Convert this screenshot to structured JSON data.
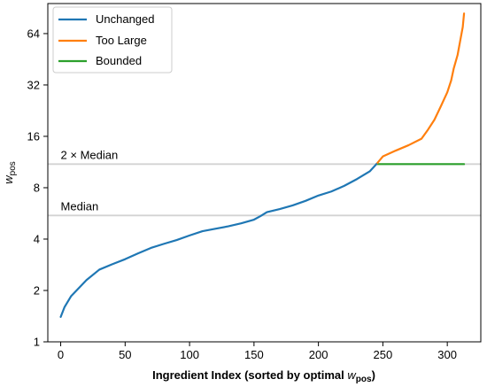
{
  "chart_data": {
    "type": "line",
    "xlabel": "Ingredient Index (sorted by optimal",
    "xlabel_math_base": "w",
    "xlabel_math_sub": "pos",
    "xlabel_close": ")",
    "ylabel_base": "w",
    "ylabel_sub": "pos",
    "y_scale": "log2",
    "xlim": [
      -10,
      326
    ],
    "ylim": [
      1,
      96
    ],
    "xticks": [
      0,
      50,
      100,
      150,
      200,
      250,
      300
    ],
    "xtick_labels": [
      "0",
      "50",
      "100",
      "150",
      "200",
      "250",
      "300"
    ],
    "yticks": [
      1,
      2,
      4,
      8,
      16,
      32,
      64
    ],
    "ytick_labels": [
      "1",
      "2",
      "4",
      "8",
      "16",
      "32",
      "64"
    ],
    "grid": false,
    "legend_position": "top-left",
    "hlines": [
      {
        "y": 11.0,
        "label": "2 × Median",
        "color": "#d3d3d3"
      },
      {
        "y": 5.5,
        "label": "Median",
        "color": "#d3d3d3"
      }
    ],
    "series": [
      {
        "name": "Unchanged",
        "color": "#1f77b4",
        "x": [
          0,
          3,
          8,
          15,
          20,
          30,
          40,
          50,
          60,
          70,
          80,
          90,
          100,
          110,
          120,
          130,
          140,
          150,
          155,
          160,
          170,
          180,
          190,
          200,
          210,
          220,
          230,
          240,
          245
        ],
        "y": [
          1.4,
          1.6,
          1.85,
          2.1,
          2.3,
          2.65,
          2.85,
          3.05,
          3.3,
          3.55,
          3.75,
          3.95,
          4.2,
          4.45,
          4.6,
          4.75,
          4.95,
          5.2,
          5.45,
          5.75,
          6.0,
          6.3,
          6.7,
          7.2,
          7.6,
          8.2,
          9.0,
          10.0,
          11.0
        ]
      },
      {
        "name": "Too Large",
        "color": "#ff7f0e",
        "x": [
          245,
          250,
          260,
          270,
          280,
          285,
          290,
          295,
          300,
          303,
          305,
          308,
          310,
          312,
          313
        ],
        "y": [
          11.0,
          12.2,
          13.2,
          14.2,
          15.5,
          17.5,
          20.0,
          24.0,
          29.0,
          34.0,
          40.0,
          48.0,
          58.0,
          70.0,
          84.0
        ]
      },
      {
        "name": "Bounded",
        "color": "#2ca02c",
        "x": [
          245,
          313
        ],
        "y": [
          11.0,
          11.0
        ]
      }
    ]
  }
}
